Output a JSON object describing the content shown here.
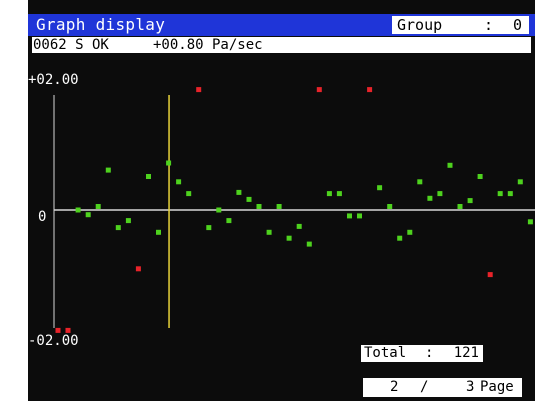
{
  "window": {
    "title": "Graph display"
  },
  "group": {
    "label": "Group",
    "separator": ":",
    "value": "0"
  },
  "status": {
    "channel_code": "0062 S OK",
    "rate": "+00.80 Pa/sec"
  },
  "chart_data": {
    "type": "scatter",
    "y_top_label": "+02.00",
    "y_zero_label": "0",
    "y_bottom_label": "-02.00",
    "ylim": [
      -2.0,
      2.0
    ],
    "grid": false,
    "cursor_index": 11,
    "colors": {
      "normal": "#4ed21e",
      "over_limit": "#e8232a",
      "cursor": "#e8d33a",
      "axis": "#d8d8d8"
    },
    "points": [
      {
        "i": 0,
        "y": -2.05,
        "over": true
      },
      {
        "i": 1,
        "y": -2.05,
        "over": true
      },
      {
        "i": 2,
        "y": 0.0,
        "over": false
      },
      {
        "i": 3,
        "y": -0.08,
        "over": false
      },
      {
        "i": 4,
        "y": 0.06,
        "over": false
      },
      {
        "i": 5,
        "y": 0.68,
        "over": false
      },
      {
        "i": 6,
        "y": -0.3,
        "over": false
      },
      {
        "i": 7,
        "y": -0.18,
        "over": false
      },
      {
        "i": 8,
        "y": -1.0,
        "over": true
      },
      {
        "i": 9,
        "y": 0.57,
        "over": false
      },
      {
        "i": 10,
        "y": -0.38,
        "over": false
      },
      {
        "i": 11,
        "y": 0.8,
        "over": false
      },
      {
        "i": 12,
        "y": 0.48,
        "over": false
      },
      {
        "i": 13,
        "y": 0.28,
        "over": false
      },
      {
        "i": 14,
        "y": 2.05,
        "over": true
      },
      {
        "i": 15,
        "y": -0.3,
        "over": false
      },
      {
        "i": 16,
        "y": 0.0,
        "over": false
      },
      {
        "i": 17,
        "y": -0.18,
        "over": false
      },
      {
        "i": 18,
        "y": 0.3,
        "over": false
      },
      {
        "i": 19,
        "y": 0.18,
        "over": false
      },
      {
        "i": 20,
        "y": 0.06,
        "over": false
      },
      {
        "i": 21,
        "y": -0.38,
        "over": false
      },
      {
        "i": 22,
        "y": 0.06,
        "over": false
      },
      {
        "i": 23,
        "y": -0.48,
        "over": false
      },
      {
        "i": 24,
        "y": -0.28,
        "over": false
      },
      {
        "i": 25,
        "y": -0.58,
        "over": false
      },
      {
        "i": 26,
        "y": 2.05,
        "over": true
      },
      {
        "i": 27,
        "y": 0.28,
        "over": false
      },
      {
        "i": 28,
        "y": 0.28,
        "over": false
      },
      {
        "i": 29,
        "y": -0.1,
        "over": false
      },
      {
        "i": 30,
        "y": -0.1,
        "over": false
      },
      {
        "i": 31,
        "y": 2.05,
        "over": true
      },
      {
        "i": 32,
        "y": 0.38,
        "over": false
      },
      {
        "i": 33,
        "y": 0.06,
        "over": false
      },
      {
        "i": 34,
        "y": -0.48,
        "over": false
      },
      {
        "i": 35,
        "y": -0.38,
        "over": false
      },
      {
        "i": 36,
        "y": 0.48,
        "over": false
      },
      {
        "i": 37,
        "y": 0.2,
        "over": false
      },
      {
        "i": 38,
        "y": 0.28,
        "over": false
      },
      {
        "i": 39,
        "y": 0.76,
        "over": false
      },
      {
        "i": 40,
        "y": 0.06,
        "over": false
      },
      {
        "i": 41,
        "y": 0.16,
        "over": false
      },
      {
        "i": 42,
        "y": 0.57,
        "over": false
      },
      {
        "i": 43,
        "y": -1.1,
        "over": true
      },
      {
        "i": 44,
        "y": 0.28,
        "over": false
      },
      {
        "i": 45,
        "y": 0.28,
        "over": false
      },
      {
        "i": 46,
        "y": 0.48,
        "over": false
      },
      {
        "i": 47,
        "y": -0.2,
        "over": false
      }
    ]
  },
  "footer": {
    "total_label": "Total",
    "total_separator": ":",
    "total_value": "121",
    "page_current": "2",
    "page_separator": "/",
    "page_total": "3",
    "page_word": "Page"
  }
}
